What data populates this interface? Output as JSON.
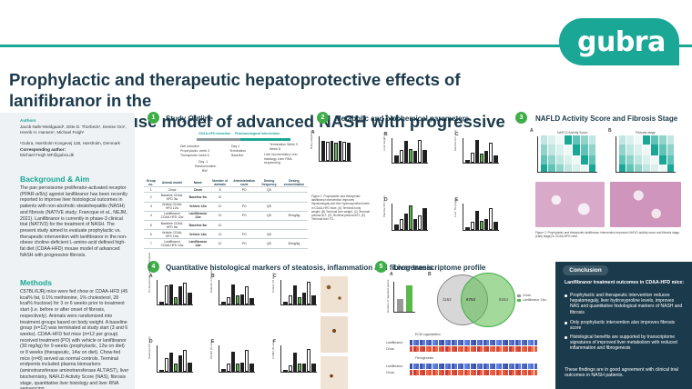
{
  "header": {
    "logo_text": "gubra",
    "title_line1": "Prophylactic and therapeutic hepatoprotective effects of lanifibranor in the",
    "title_line2": "CDAA-HFD mouse model of advanced NASH with progressive fibrosis"
  },
  "left": {
    "authors_label": "Authors",
    "authors": "Jacob Nøhr-Meldgaard¹, Ditte D. Thorbeck¹, Denise Oro¹, Henrik H. Hansen¹, Michael Feigh¹",
    "affiliation": "¹Gubra, Hørsholm Kongevej 11B, Hørsholm, Denmark",
    "corresponding_label": "Corresponding author:",
    "corresponding": "Michael Feigh MF@gubra.dk",
    "bg_heading": "Background & Aim",
    "bg_text": "The pan peroxisome proliferator-activated receptor (PPAR-α/δ/γ) agonist lanifibranor has been recently reported to improve liver histological outcomes in patients with non-alcoholic steatohepatitis (NASH) and fibrosis (NATIVE study; Francque et al., NEJM, 2021). Lanifibranor is currently in phase-3 clinical trial (NATIV3) for the treatment of NASH. The present study aimed to evaluate prophylactic vs. therapeutic intervention with lanifibranor in the non-obese choline-deficient L-amino-acid defined high-fat diet (CDAA-HFD) mouse model of advanced NASH with progressive fibrosis.",
    "methods_heading": "Methods",
    "methods_text": "C57BL/6JRj mice were fed chow or CDAA-HFD (45 kcal% fat, 0.1% methionine, 1% cholesterol, 28 kcal% fructose) for 3 or 6 weeks prior to treatment start (i.e. before or after onset of fibrosis, respectively). Animals were randomized into treatment groups based on body weight. A baseline group (n=12) was terminated at study start (3 and 6 weeks). CDAA-HFD fed mice (n=12 per group) received treatment (PO) with vehicle or lanifibranor (30 mg/kg) for 9 weeks (prophylactic, 12w on diet) or 8 weeks (therapeutic, 14w on diet). Chow-fed mice (n=8) served as normal controls. Terminal endpoints included plasma biomarkers (aminotransferase aminotransferase ALT/AST), liver biochemistry, NAFLD Activity Score (NAS), fibrosis stage, quantitative liver histology and liver RNA sequencing."
  },
  "sections": {
    "s1": {
      "num": "1",
      "title": "Study Outline"
    },
    "s2": {
      "num": "2",
      "title": "Metabolic and biochemical parameters"
    },
    "s3": {
      "num": "3",
      "title": "NAFLD Activity Score and Fibrosis Stage"
    },
    "s4": {
      "num": "4",
      "title": "Quantitative histological markers of steatosis, inflammation and fibrogenesis"
    },
    "s5": {
      "num": "5",
      "title": "Liver transcriptome profile"
    }
  },
  "study_outline": {
    "cdaa_label": "CDAA-HFD induction",
    "pharm_label": "Pharmacological intervention",
    "diet_label": "Diet induction",
    "prophy": "Prophylactic: week 3",
    "thera": "Therapeutic: week 6",
    "day0": "Day -1",
    "randomization": "Randomization",
    "bw": "BW",
    "tox1": "Day 1",
    "termination": "Termination",
    "baseline": "Baseline",
    "term_week": "Termination Week 9 Week 8",
    "endpoints": "Liver biochemistry Liver histology Liver RNA sequencing",
    "table_headers": [
      "Group no.",
      "Animal model",
      "Name",
      "Number of animals",
      "Administration route",
      "Dosing frequency",
      "Dosing concentration"
    ],
    "table_rows": [
      [
        "1",
        "Chow",
        "Chow",
        "8",
        "PO",
        "QD",
        ""
      ],
      [
        "2",
        "Baseline CDAA-HFD 3w",
        "Baseline 3w",
        "12",
        "",
        "",
        ""
      ],
      [
        "3",
        "Vehicle CDAA-HFD 12w",
        "Vehicle 12w",
        "12",
        "PO",
        "QD",
        ""
      ],
      [
        "4",
        "Lanifibranor CDAA-HFD 12w",
        "Lanifibranor 12w",
        "12",
        "PO",
        "QD",
        "30mg/kg"
      ],
      [
        "5",
        "Baseline CDAA-HFD 6w",
        "Baseline 6w",
        "12",
        "",
        "",
        ""
      ],
      [
        "6",
        "Vehicle CDAA-HFD 14w",
        "Vehicle 14w",
        "12",
        "PO",
        "QD",
        ""
      ],
      [
        "7",
        "Lanifibranor CDAA-HFD 14w",
        "Lanifibranor 14w",
        "12",
        "PO",
        "QD",
        "30mg/kg"
      ]
    ]
  },
  "metabolic": {
    "panel_labels": [
      "A",
      "B",
      "C",
      "D",
      "E"
    ],
    "ylabels": [
      "Body weight (g)",
      "Liver weight (g)",
      "Plasma ALT (U/L)",
      "Plasma AST (U/L)",
      "Liver TG (mg/g)"
    ],
    "caption": "Figure 1. Prophylactic and therapeutic lanifibranor intervention improves hepatomegaly and liver hydroxyproline levels in CDAA-HFD mice. (A) Terminal body weight, (B) Terminal liver weight, (C) Terminal plasma ALT, (D) Terminal plasma AST, (E) Terminal liver TG."
  },
  "nas": {
    "panel_a": "A",
    "panel_b": "B",
    "title_a": "NAFLD Activity Score",
    "title_b": "Fibrosis stage",
    "ylabel": "% of mice",
    "caption": "Figure 2. Prophylactic and therapeutic lanifibranor intervention improves NAFLD activity score and fibrosis stage (early stage) in CDAA-HFD mice."
  },
  "histology": {
    "panel_labels": [
      "A",
      "B",
      "C",
      "D",
      "E",
      "F"
    ],
    "ylabels": [
      "% Hepatocytes with lipid droplets",
      "Galectin-3 (% area)",
      "Col1a1 (% area)",
      "Steatosis (% area)",
      "CD11b (% area)",
      "α-SMA (% area)"
    ],
    "img_labels": [
      "Vehicle 12w",
      "Lanifibranor 12w"
    ]
  },
  "transcriptome": {
    "panel_a": "A",
    "panel_b": "B",
    "venn_left": "1162",
    "venn_center": "6753",
    "venn_right": "5344",
    "legend": [
      "Chow",
      "Lanifibranor 14w"
    ],
    "ylabel": "Number of regulated genes",
    "ecm_label": "ECM organization",
    "lanif_label": "Lanifibranor",
    "chow_label": "Chow",
    "fibro_label": "Fibrogenesis"
  },
  "conclusion": {
    "heading": "Conclusion",
    "intro": "Lanifibranor treatment outcomes in CDAA-HFD mice:",
    "bullets": [
      "Prophylactic and therapeutic intervention reduces hepatomegaly, liver hydroxyproline levels, improves NAS and quantitative histological markers of NASH and fibrosis",
      "Only prophylactic intervention also improves fibrosis score",
      "Histological benefits are supported by transcriptome signatures of improved liver metabolism with reduced inflammation and fibrogenesis"
    ],
    "closing": "These findings are in good agreement with clinical trial outcomes in NASH patients."
  },
  "colors": {
    "accent": "#1aa796",
    "navy": "#1b3a4b",
    "green": "#3fae49",
    "bar_black": "#1f1f1f",
    "bar_green": "#58b947"
  }
}
